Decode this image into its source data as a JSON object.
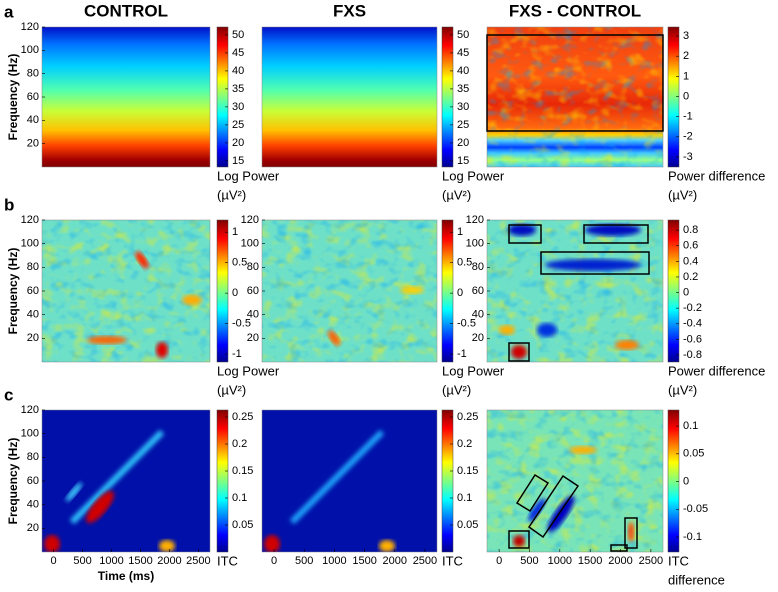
{
  "chart_data": [
    {
      "type": "heatmap",
      "panel_label": "a",
      "title": "CONTROL",
      "ylabel": "Frequency (Hz)",
      "ylim": [
        0,
        120
      ],
      "yticks": [
        20,
        40,
        60,
        80,
        100,
        120
      ],
      "clim": [
        13.3,
        52.2
      ],
      "cticks": [
        15,
        20,
        25,
        30,
        35,
        40,
        45,
        50
      ],
      "clabel": [
        "Log Power",
        "(µV²)"
      ]
    },
    {
      "type": "heatmap",
      "title": "FXS",
      "ylim": [
        0,
        120
      ],
      "clim": [
        13.3,
        52.2
      ],
      "cticks": [
        15,
        20,
        25,
        30,
        35,
        40,
        45,
        50
      ],
      "clabel": [
        "Log Power",
        "(µV²)"
      ]
    },
    {
      "type": "heatmap",
      "title": "FXS - CONTROL",
      "ylim": [
        0,
        120
      ],
      "clim": [
        -3.5,
        3.45
      ],
      "cticks": [
        -3,
        -2,
        -1,
        0,
        1,
        2,
        3
      ],
      "clabel": [
        "Power difference",
        "(µV²)"
      ]
    },
    {
      "type": "heatmap",
      "panel_label": "b",
      "ylabel": "Frequency (Hz)",
      "ylim": [
        0,
        120
      ],
      "yticks": [
        20,
        40,
        60,
        80,
        100,
        120
      ],
      "clim": [
        -1.13,
        1.2
      ],
      "cticks": [
        -1,
        -0.5,
        0,
        0.5,
        1
      ],
      "clabel": [
        "Log Power",
        "(µV²)"
      ]
    },
    {
      "type": "heatmap",
      "ylim": [
        0,
        120
      ],
      "yticks": [
        20,
        40,
        60,
        80,
        100,
        120
      ],
      "clim": [
        -1.13,
        1.2
      ],
      "cticks": [
        -1,
        -0.5,
        0,
        0.5,
        1
      ],
      "clabel": [
        "Log Power",
        "(µV²)"
      ]
    },
    {
      "type": "heatmap",
      "ylim": [
        0,
        120
      ],
      "yticks": [
        20,
        40,
        60,
        80,
        100,
        120
      ],
      "clim": [
        -0.89,
        0.93
      ],
      "cticks": [
        -0.8,
        -0.6,
        -0.4,
        -0.2,
        0,
        0.2,
        0.4,
        0.6,
        0.8
      ],
      "clabel": [
        "Power difference",
        "(µV²)"
      ]
    },
    {
      "type": "heatmap",
      "panel_label": "c",
      "ylabel": "Frequency (Hz)",
      "ylim": [
        0,
        120
      ],
      "yticks": [
        20,
        40,
        60,
        80,
        100,
        120
      ],
      "xlim": [
        -200,
        2700
      ],
      "xticks": [
        0,
        500,
        1000,
        1500,
        2000,
        2500
      ],
      "xlabel": "Time (ms)",
      "clim": [
        0,
        0.263
      ],
      "cticks": [
        0.05,
        0.1,
        0.15,
        0.2,
        0.25
      ],
      "clabel": [
        "ITC"
      ]
    },
    {
      "type": "heatmap",
      "xlim": [
        -200,
        2700
      ],
      "xticks": [
        0,
        500,
        1000,
        1500,
        2000,
        2500
      ],
      "ylim": [
        0,
        120
      ],
      "clim": [
        0,
        0.263
      ],
      "cticks": [
        0.05,
        0.1,
        0.15,
        0.2,
        0.25
      ],
      "clabel": [
        "ITC"
      ]
    },
    {
      "type": "heatmap",
      "xlim": [
        -200,
        2700
      ],
      "xticks": [
        0,
        500,
        1000,
        1500,
        2000,
        2500
      ],
      "ylim": [
        0,
        120
      ],
      "clim": [
        -0.127,
        0.129
      ],
      "cticks": [
        -0.1,
        -0.05,
        0,
        0.05,
        0.1
      ],
      "clabel": [
        "ITC",
        "difference"
      ]
    }
  ]
}
